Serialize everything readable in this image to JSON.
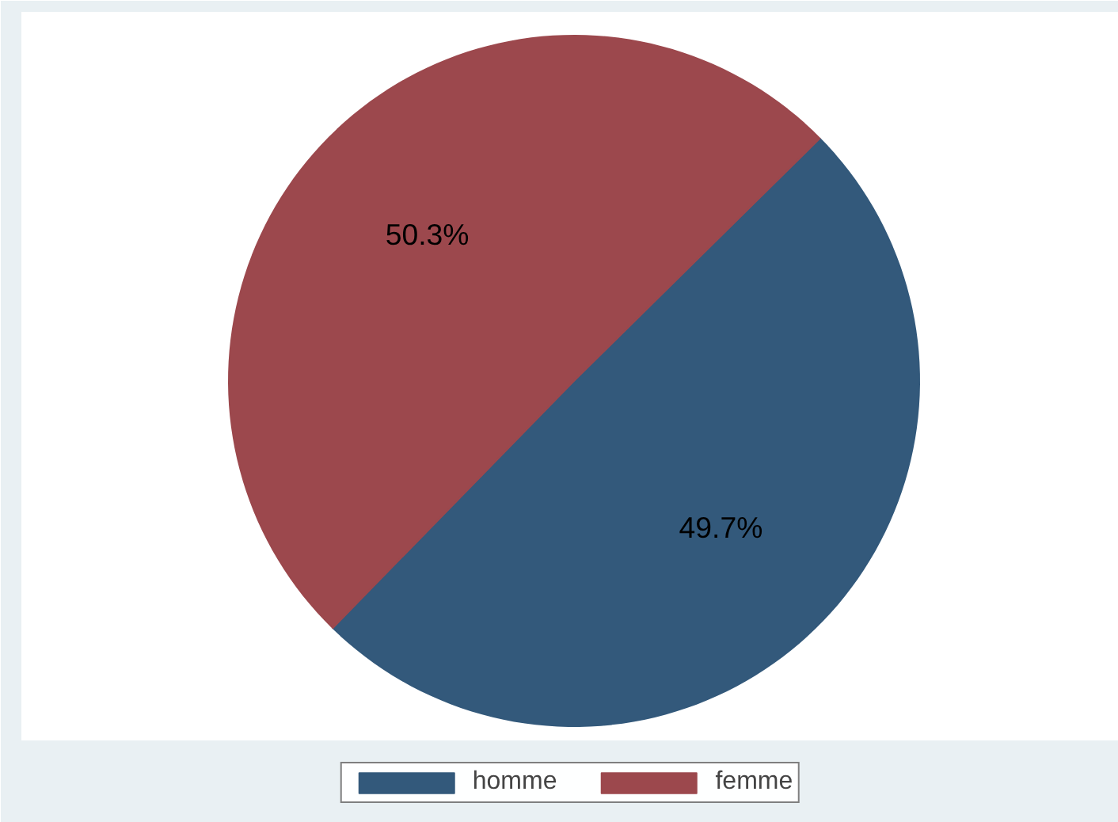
{
  "chart_data": {
    "type": "pie",
    "categories": [
      "homme",
      "femme"
    ],
    "values": [
      49.7,
      50.3
    ],
    "colors": [
      "#33597b",
      "#9c484d"
    ],
    "value_labels": [
      "49.7%",
      "50.3%"
    ],
    "legend": "bottom"
  }
}
